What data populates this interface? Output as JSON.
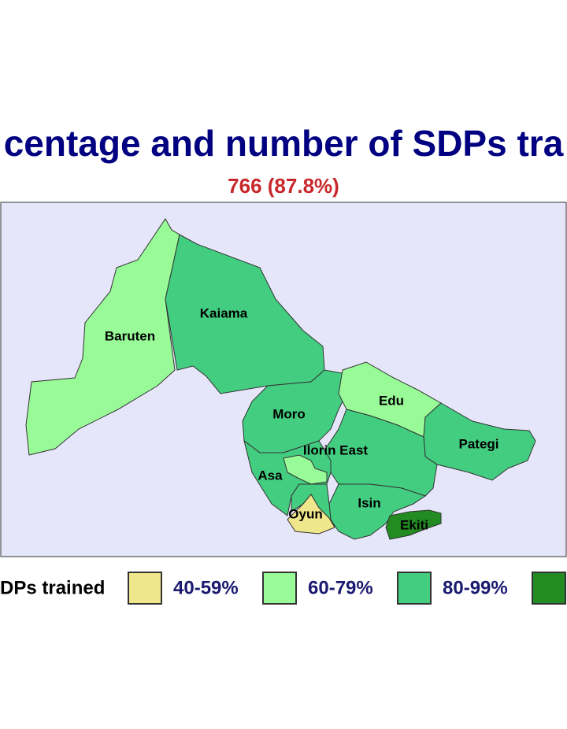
{
  "title": "centage and number of SDPs tra",
  "subtitle": "766 (87.8%)",
  "districts": [
    "Baruten",
    "Kaiama",
    "Moro",
    "Edu",
    "Pategi",
    "Ilorin East",
    "Asa",
    "Oyun",
    "Isin",
    "Ekiti"
  ],
  "legend": {
    "title": "DPs trained",
    "items": [
      {
        "label": "40-59%",
        "color": "#f0e68c"
      },
      {
        "label": "60-79%",
        "color": "#98fb98"
      },
      {
        "label": "80-99%",
        "color": "#43cd80"
      },
      {
        "color": "#228b22"
      }
    ]
  }
}
